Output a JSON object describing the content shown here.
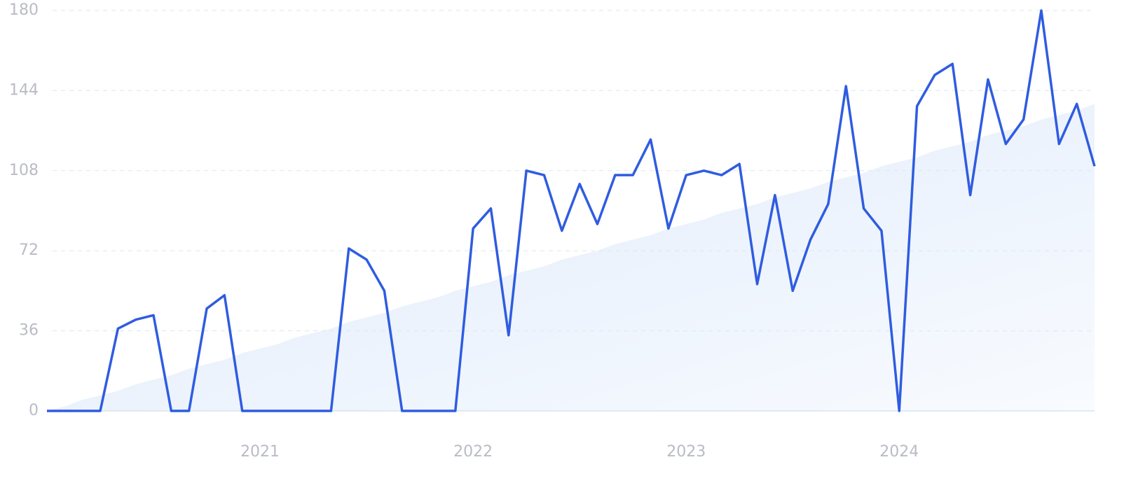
{
  "chart_data": {
    "type": "line",
    "categories": [
      null,
      null,
      null,
      null,
      null,
      null,
      null,
      null,
      null,
      null,
      null,
      null,
      "2021",
      null,
      null,
      null,
      null,
      null,
      null,
      null,
      null,
      null,
      null,
      null,
      "2022",
      null,
      null,
      null,
      null,
      null,
      null,
      null,
      null,
      null,
      null,
      null,
      "2023",
      null,
      null,
      null,
      null,
      null,
      null,
      null,
      null,
      null,
      null,
      null,
      "2024",
      null,
      null,
      null,
      null,
      null,
      null,
      null,
      null,
      null,
      null,
      null
    ],
    "series": [
      {
        "color": "#2f5ce0",
        "values": [
          0,
          0,
          0,
          0,
          37,
          41,
          43,
          0,
          0,
          46,
          52,
          0,
          0,
          0,
          0,
          0,
          0,
          73,
          68,
          54,
          0,
          0,
          0,
          0,
          82,
          91,
          34,
          108,
          106,
          81,
          102,
          84,
          106,
          106,
          122,
          82,
          106,
          108,
          106,
          111,
          57,
          97,
          54,
          77,
          93,
          146,
          91,
          81,
          0,
          137,
          151,
          156,
          97,
          149,
          120,
          131,
          180,
          120,
          138,
          110
        ]
      },
      {
        "color": "#e6effb",
        "values": [
          0,
          2,
          5,
          7,
          9,
          12,
          14,
          16,
          19,
          21,
          23,
          26,
          28,
          30,
          33,
          35,
          37,
          40,
          42,
          44,
          47,
          49,
          51,
          54,
          56,
          58,
          61,
          63,
          65,
          68,
          70,
          72,
          75,
          77,
          79,
          82,
          84,
          86,
          89,
          91,
          93,
          96,
          98,
          100,
          103,
          105,
          107,
          110,
          112,
          114,
          117,
          119,
          121,
          124,
          126,
          128,
          131,
          133,
          135,
          138
        ]
      }
    ],
    "ylim": [
      0,
      180
    ],
    "yticks": [
      0,
      36,
      72,
      108,
      144,
      180
    ],
    "grid": true
  }
}
